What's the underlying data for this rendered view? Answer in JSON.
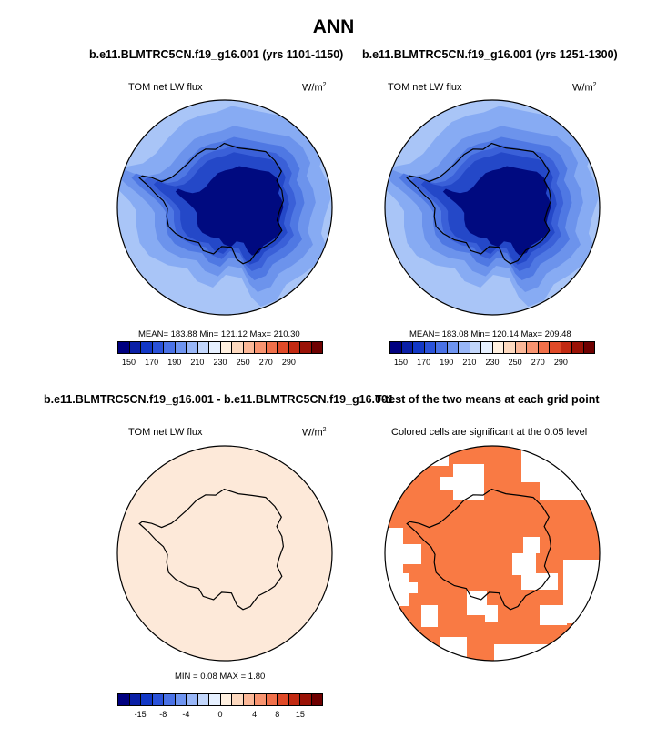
{
  "figure_title": "ANN",
  "panel_titles": {
    "top_left": "b.e11.BLMTRC5CN.f19_g16.001 (yrs 1101-1150)",
    "top_right": "b.e11.BLMTRC5CN.f19_g16.001 (yrs 1251-1300)",
    "bottom_left": "b.e11.BLMTRC5CN.f19_g16.001 - b.e11.BLMTRC5CN.f19_g16.001",
    "bottom_right": "T-test of the two means at each grid point"
  },
  "panels": {
    "p1": {
      "variable": "TOM net LW flux",
      "units": "W/m",
      "units_sup": "2",
      "stats": "MEAN= 183.88  Min= 121.12  Max= 210.30"
    },
    "p2": {
      "variable": "TOM net LW flux",
      "units": "W/m",
      "units_sup": "2",
      "stats": "MEAN= 183.08  Min= 120.14  Max= 209.48"
    },
    "p3": {
      "variable": "TOM net LW flux",
      "units": "W/m",
      "units_sup": "2",
      "stats": "MIN =  0.08 MAX =  1.80"
    },
    "p4": {
      "caption": "Colored cells are significant at the 0.05 level"
    }
  },
  "colorbars": {
    "absolute": {
      "colors": [
        "#000080",
        "#0a1fa6",
        "#1238c6",
        "#2a52d9",
        "#4a72e6",
        "#6e94f0",
        "#98b6f7",
        "#c2d6fb",
        "#e6f0ff",
        "#fff0e0",
        "#fdd9bf",
        "#fbb898",
        "#f89470",
        "#f0704a",
        "#e04a28",
        "#c22a12",
        "#9a1206",
        "#6e0000"
      ],
      "tick_labels": [
        "150",
        "170",
        "190",
        "210",
        "230",
        "250",
        "270",
        "290"
      ],
      "tick_positions": [
        1,
        3,
        5,
        7,
        9,
        11,
        13,
        15
      ]
    },
    "difference": {
      "colors": [
        "#000080",
        "#0a1fa6",
        "#1238c6",
        "#2a52d9",
        "#4a72e6",
        "#6e94f0",
        "#98b6f7",
        "#c2d6fb",
        "#e6f0ff",
        "#fff0e0",
        "#fdd9bf",
        "#fbb898",
        "#f89470",
        "#f0704a",
        "#e04a28",
        "#c22a12",
        "#9a1206",
        "#6e0000"
      ],
      "tick_labels": [
        "-15",
        "-8",
        "-4",
        "0",
        "4",
        "8",
        "15"
      ],
      "tick_positions": [
        2,
        4,
        6,
        9,
        12,
        14,
        16
      ]
    }
  },
  "map_colors": {
    "outer": "#a9c5f7",
    "ring2": "#87abf3",
    "ring3": "#6c93ec",
    "ring4": "#4f78e3",
    "ring5": "#3a60d8",
    "coast_band": "#2448c8",
    "interior": "#000a80",
    "difference_fill": "#fde9d9",
    "significant": "#f97a44"
  }
}
